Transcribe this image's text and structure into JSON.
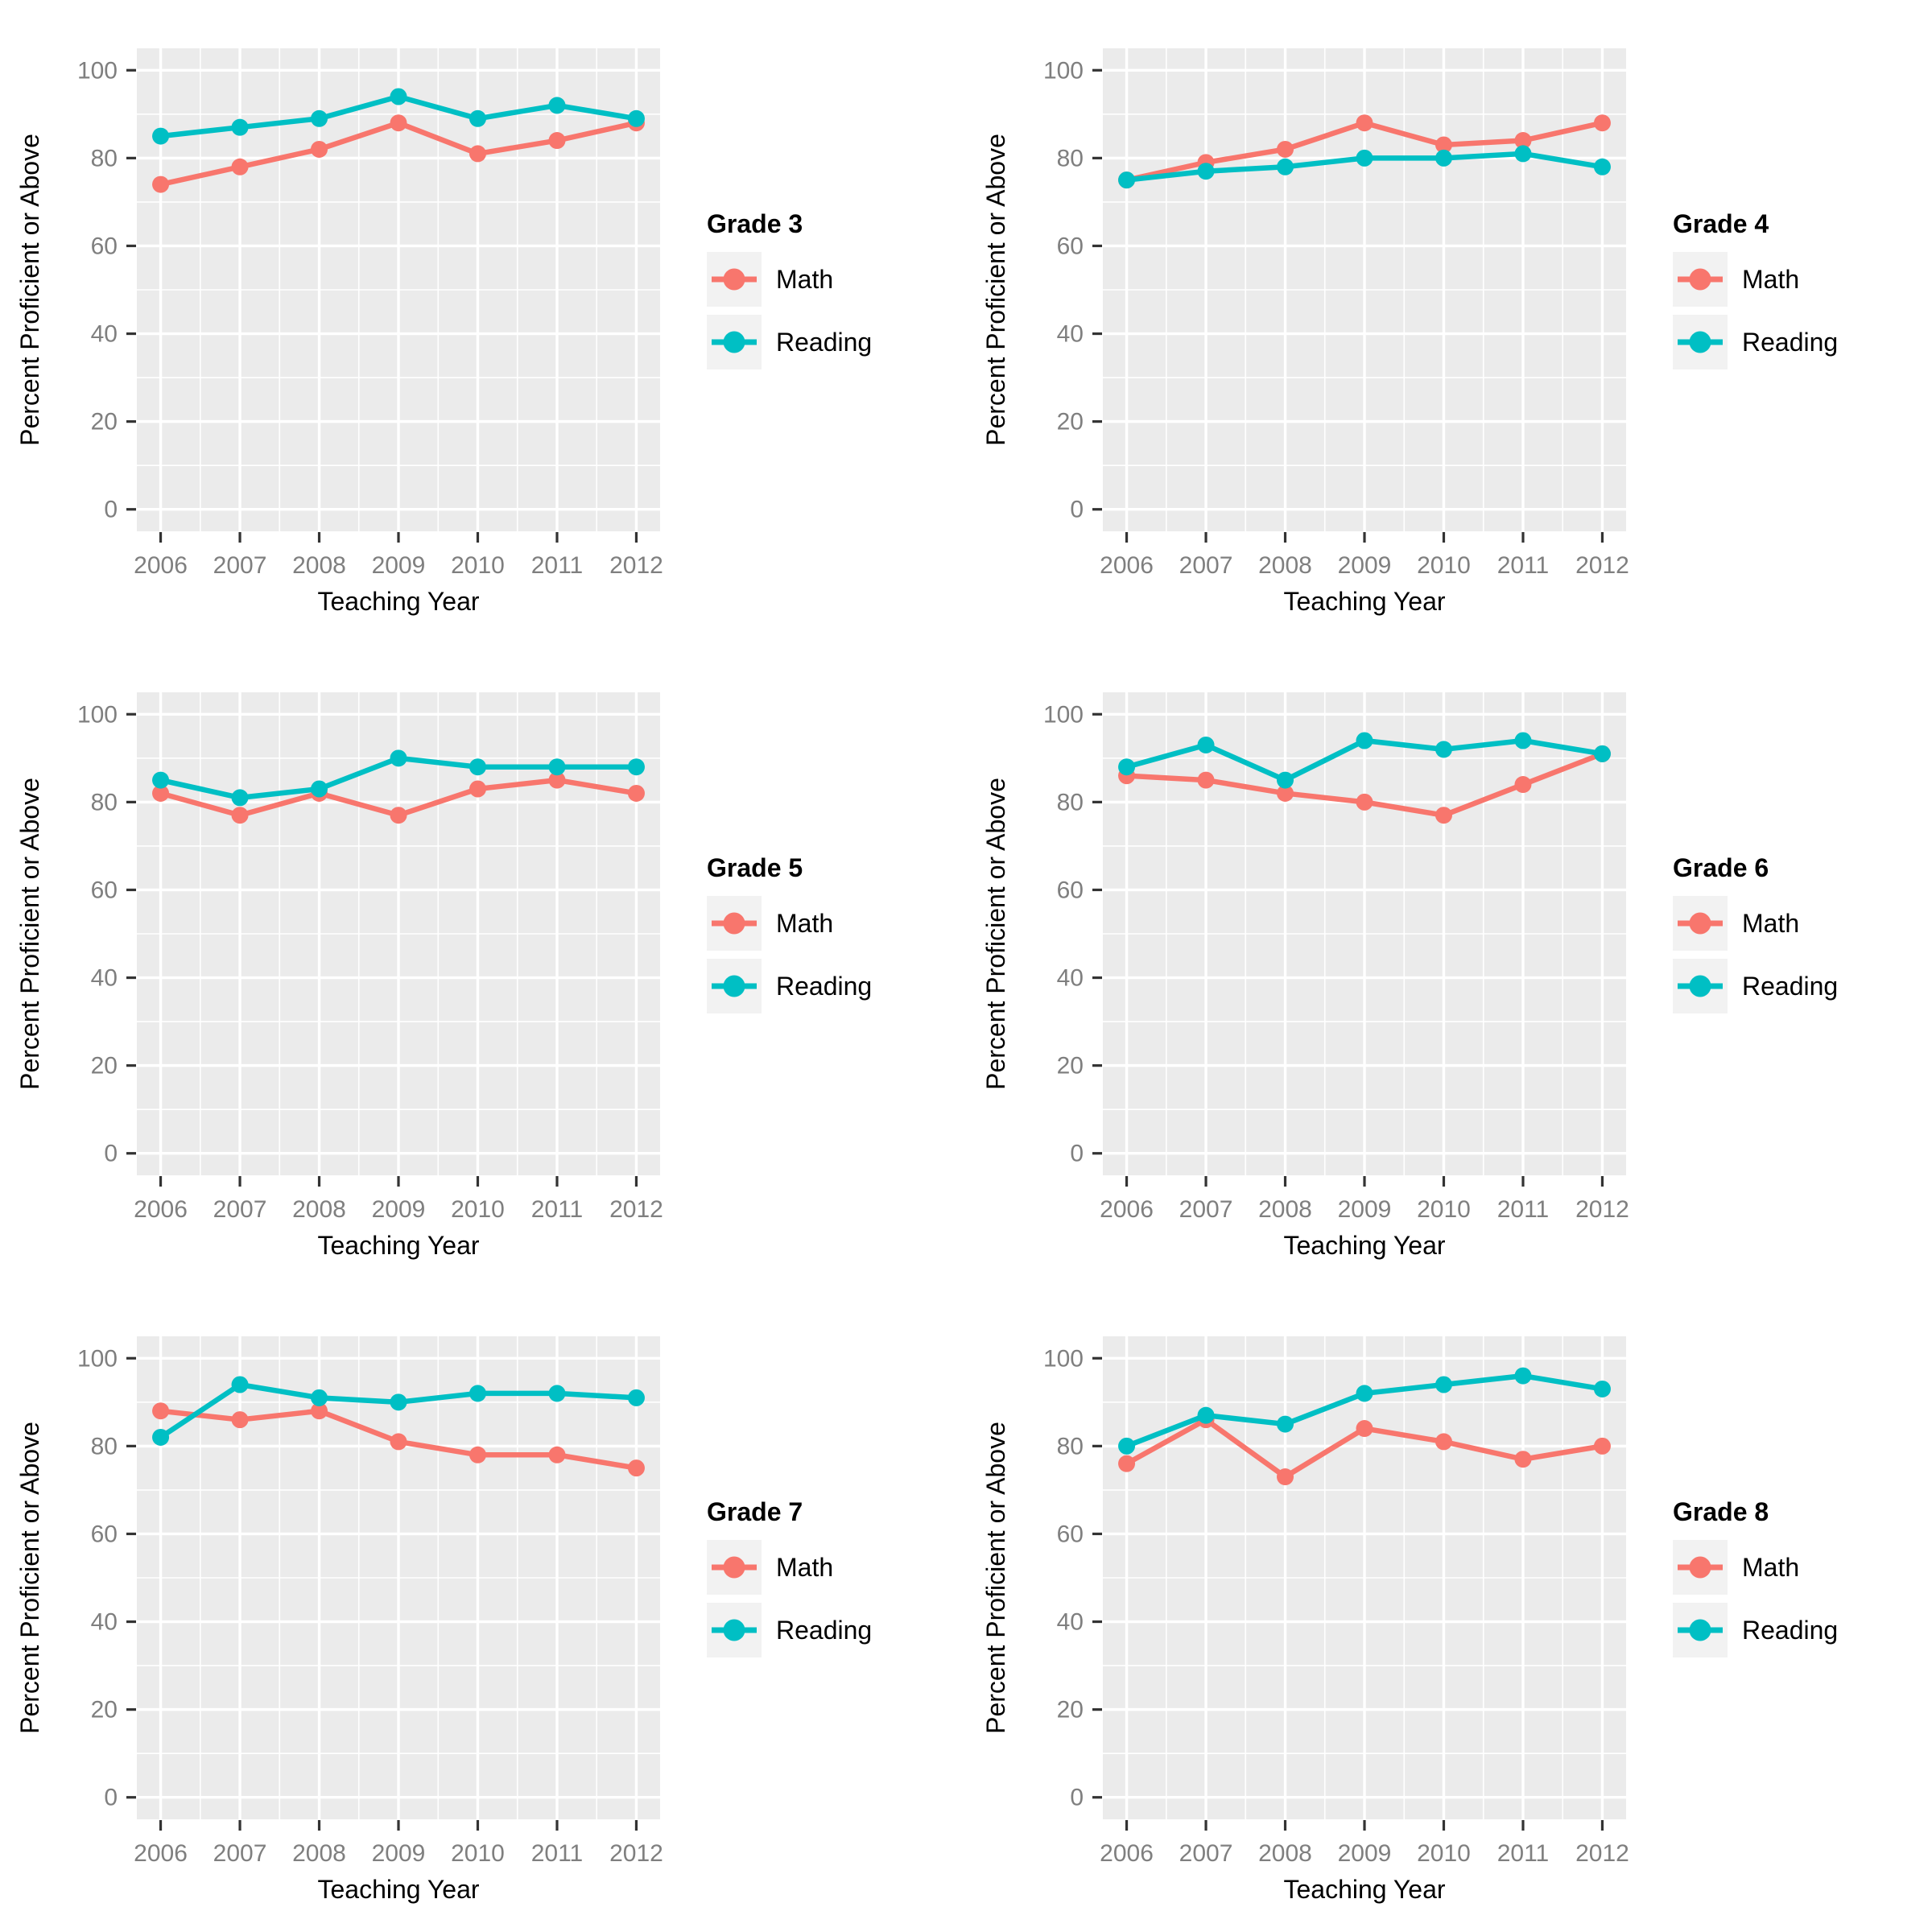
{
  "colors": {
    "math": "#F8766D",
    "reading": "#00BFC4",
    "panel_bg": "#EBEBEB",
    "grid_major": "#FFFFFF",
    "grid_minor": "#FFFFFF",
    "legend_key_bg": "#F2F2F2",
    "tick_mark": "#333333",
    "tick_text": "#7F7F7F",
    "axis_title_text": "#000000"
  },
  "axes": {
    "x_label": "Teaching Year",
    "y_label": "Percent Proficient or Above",
    "y_ticks": [
      0,
      20,
      40,
      60,
      80,
      100
    ],
    "ylim": [
      0,
      100
    ]
  },
  "chart_data": [
    {
      "type": "line",
      "legend_title": "Grade 3",
      "xlabel": "Teaching Year",
      "ylabel": "Percent Proficient or Above",
      "ylim": [
        0,
        100
      ],
      "x": [
        2006,
        2007,
        2008,
        2009,
        2010,
        2011,
        2012
      ],
      "series": [
        {
          "name": "Math",
          "color": "#F8766D",
          "values": [
            74,
            78,
            82,
            88,
            81,
            84,
            88
          ]
        },
        {
          "name": "Reading",
          "color": "#00BFC4",
          "values": [
            85,
            87,
            89,
            94,
            89,
            92,
            89
          ]
        }
      ]
    },
    {
      "type": "line",
      "legend_title": "Grade 4",
      "xlabel": "Teaching Year",
      "ylabel": "Percent Proficient or Above",
      "ylim": [
        0,
        100
      ],
      "x": [
        2006,
        2007,
        2008,
        2009,
        2010,
        2011,
        2012
      ],
      "series": [
        {
          "name": "Math",
          "color": "#F8766D",
          "values": [
            75,
            79,
            82,
            88,
            83,
            84,
            88
          ]
        },
        {
          "name": "Reading",
          "color": "#00BFC4",
          "values": [
            75,
            77,
            78,
            80,
            80,
            81,
            78
          ]
        }
      ]
    },
    {
      "type": "line",
      "legend_title": "Grade 5",
      "xlabel": "Teaching Year",
      "ylabel": "Percent Proficient or Above",
      "ylim": [
        0,
        100
      ],
      "x": [
        2006,
        2007,
        2008,
        2009,
        2010,
        2011,
        2012
      ],
      "series": [
        {
          "name": "Math",
          "color": "#F8766D",
          "values": [
            82,
            77,
            82,
            77,
            83,
            85,
            82
          ]
        },
        {
          "name": "Reading",
          "color": "#00BFC4",
          "values": [
            85,
            81,
            83,
            90,
            88,
            88,
            88
          ]
        }
      ]
    },
    {
      "type": "line",
      "legend_title": "Grade 6",
      "xlabel": "Teaching Year",
      "ylabel": "Percent Proficient or Above",
      "ylim": [
        0,
        100
      ],
      "x": [
        2006,
        2007,
        2008,
        2009,
        2010,
        2011,
        2012
      ],
      "series": [
        {
          "name": "Math",
          "color": "#F8766D",
          "values": [
            86,
            85,
            82,
            80,
            77,
            84,
            91
          ]
        },
        {
          "name": "Reading",
          "color": "#00BFC4",
          "values": [
            88,
            93,
            85,
            94,
            92,
            94,
            91
          ]
        }
      ]
    },
    {
      "type": "line",
      "legend_title": "Grade 7",
      "xlabel": "Teaching Year",
      "ylabel": "Percent Proficient or Above",
      "ylim": [
        0,
        100
      ],
      "x": [
        2006,
        2007,
        2008,
        2009,
        2010,
        2011,
        2012
      ],
      "series": [
        {
          "name": "Math",
          "color": "#F8766D",
          "values": [
            88,
            86,
            88,
            81,
            78,
            78,
            75
          ]
        },
        {
          "name": "Reading",
          "color": "#00BFC4",
          "values": [
            82,
            94,
            91,
            90,
            92,
            92,
            91
          ]
        }
      ]
    },
    {
      "type": "line",
      "legend_title": "Grade 8",
      "xlabel": "Teaching Year",
      "ylabel": "Percent Proficient or Above",
      "ylim": [
        0,
        100
      ],
      "x": [
        2006,
        2007,
        2008,
        2009,
        2010,
        2011,
        2012
      ],
      "series": [
        {
          "name": "Math",
          "color": "#F8766D",
          "values": [
            76,
            86,
            73,
            84,
            81,
            77,
            80
          ]
        },
        {
          "name": "Reading",
          "color": "#00BFC4",
          "values": [
            80,
            87,
            85,
            92,
            94,
            96,
            93
          ]
        }
      ]
    }
  ]
}
